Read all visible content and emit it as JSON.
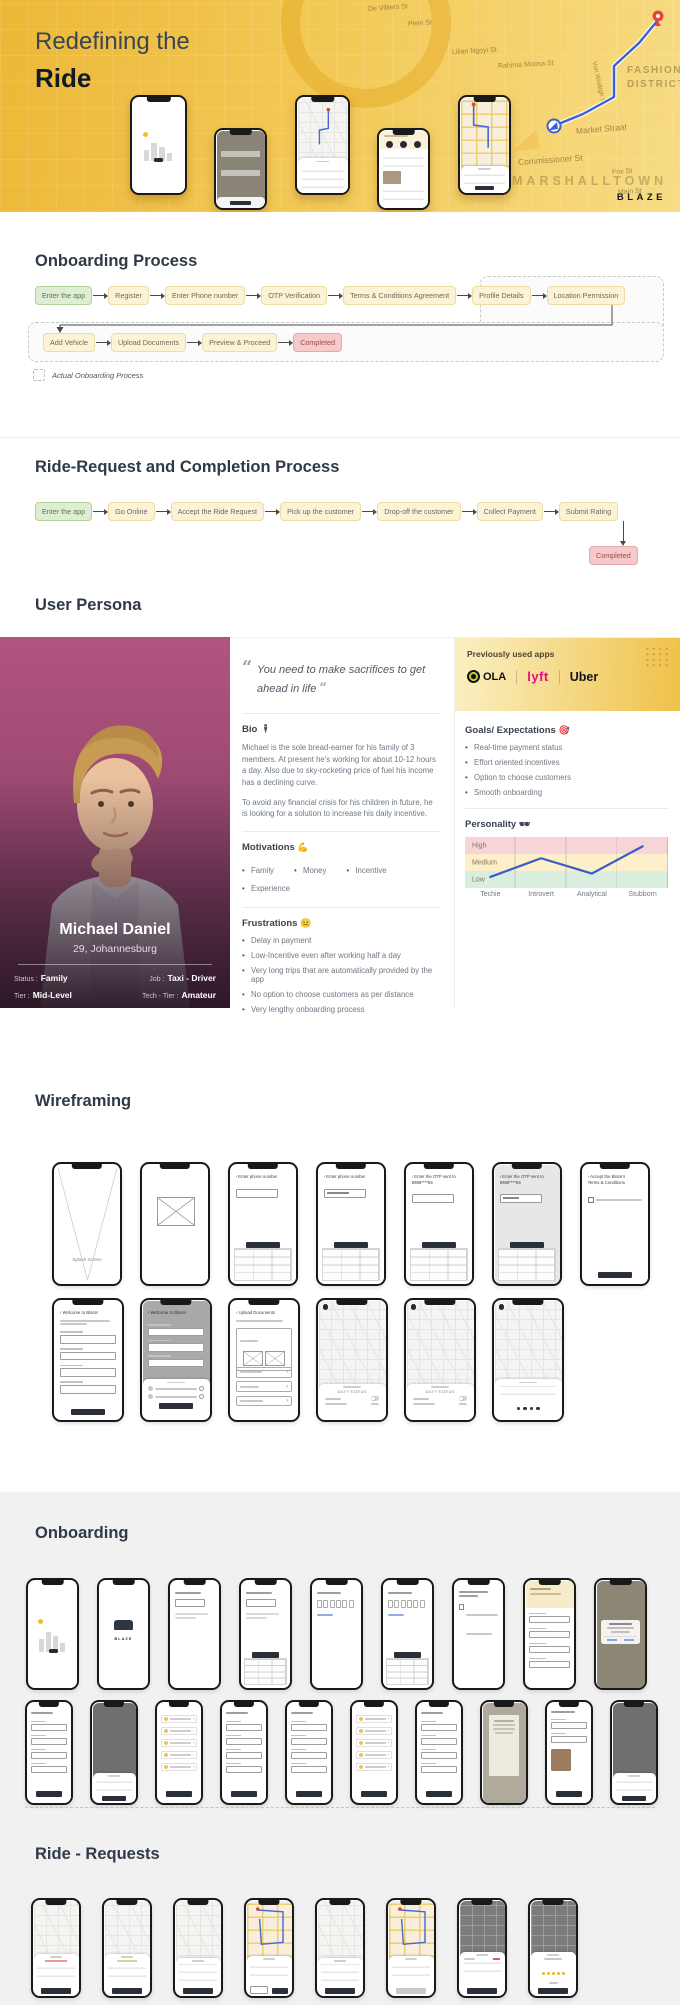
{
  "hero": {
    "title_line1": "Redefining the",
    "title_line2": "Ride",
    "brand": "BLAZE",
    "district": "FASHION DISTRICT",
    "area": "MARSHALLTOWN",
    "streets": [
      "De Villiers St",
      "Plein St",
      "Lilian Ngoyi St",
      "Rahima Moosa St",
      "Von Wielligh St",
      "Market Straat",
      "Commissioner St",
      "Fox St",
      "Fox St",
      "Main St"
    ],
    "route_color": "#3D5FD4",
    "pin_color": "#E2453A",
    "phones": [
      {
        "kind": "hp_splash"
      },
      {
        "kind": "hp_gray"
      },
      {
        "kind": "hp_map"
      },
      {
        "kind": "hp_list"
      },
      {
        "kind": "hp_map2"
      }
    ]
  },
  "onboarding_process": {
    "title": "Onboarding Process",
    "legend": "Actual Onboarding Process",
    "row1": [
      {
        "label": "Enter the app",
        "type": "green"
      },
      {
        "label": "Register",
        "type": "yellow"
      },
      {
        "label": "Enter Phone number",
        "type": "yellow"
      },
      {
        "label": "OTP Verification",
        "type": "yellow"
      },
      {
        "label": "Terms & Conditions Agreement",
        "type": "yellow"
      },
      {
        "label": "Profile Details",
        "type": "yellow"
      },
      {
        "label": "Location Permission",
        "type": "yellow"
      }
    ],
    "row2": [
      {
        "label": "Add Vehicle",
        "type": "yellow"
      },
      {
        "label": "Upload Documents",
        "type": "yellow"
      },
      {
        "label": "Preview & Proceed",
        "type": "yellow"
      },
      {
        "label": "Completed",
        "type": "red"
      }
    ]
  },
  "ride_process": {
    "title": "Ride-Request and Completion Process",
    "row": [
      {
        "label": "Enter the app",
        "type": "green"
      },
      {
        "label": "Go Online",
        "type": "yellow"
      },
      {
        "label": "Accept the Ride Request",
        "type": "yellow"
      },
      {
        "label": "Pick up the customer",
        "type": "yellow"
      },
      {
        "label": "Drop-off the customer",
        "type": "yellow"
      },
      {
        "label": "Collect Payment",
        "type": "yellow"
      },
      {
        "label": "Submit Rating",
        "type": "yellow"
      }
    ],
    "final": {
      "label": "Completed",
      "type": "red"
    }
  },
  "persona": {
    "title": "User Persona",
    "quote": "You need to make sacrifices to get ahead in life",
    "name": "Michael Daniel",
    "age_city": "29, Johannesburg",
    "attributes": [
      {
        "label": "Status :",
        "value": "Family"
      },
      {
        "label": "Job :",
        "value": "Taxi - Driver"
      },
      {
        "label": "Tier :",
        "value": "Mid-Level"
      },
      {
        "label": "Tech - Tier :",
        "value": "Amateur"
      }
    ],
    "bio": {
      "heading": "Bio",
      "emoji": "🕴",
      "paragraphs": [
        "Michael is the sole bread-earner for his family of 3 members. At present he's working for about 10-12 hours a day. Also due to sky-rocketing price of fuel his income has a declining curve.",
        "To avoid any financial crisis for his children in future, he is looking for a solution to increase his daily incentive."
      ]
    },
    "motivations": {
      "heading": "Motivations",
      "emoji": "💪",
      "items": [
        "Family",
        "Money",
        "Incentive",
        "Experience"
      ]
    },
    "frustrations": {
      "heading": "Frustrations",
      "emoji": "😐",
      "items": [
        "Delay in payment",
        "Low-Incentive even after working half a day",
        "Very long trips that are automatically provided by the app",
        "No option to choose customers as per distance",
        "Very lengthy onboarding process"
      ]
    },
    "apps": {
      "heading": "Previously used apps",
      "logos": [
        {
          "name": "OLA"
        },
        {
          "name": "lyft"
        },
        {
          "name": "Uber"
        }
      ]
    },
    "goals": {
      "heading": "Goals/ Expectations",
      "emoji": "🎯",
      "items": [
        "Real-time payment status",
        "Effort oriented incentives",
        "Option to choose customers",
        "Smooth onboarding"
      ]
    },
    "personality": {
      "heading": "Personality",
      "emoji": "🕶",
      "chart_data": {
        "type": "line",
        "categories": [
          "Techie",
          "Introvert",
          "Analytical",
          "Stubborn"
        ],
        "bands": [
          "High",
          "Medium",
          "Low"
        ],
        "values": [
          1.15,
          2.25,
          1.35,
          2.95
        ],
        "values_band": [
          "Low",
          "Medium",
          "Low",
          "High"
        ],
        "line_color": "#3A5BC7",
        "band_colors": {
          "High": "#F7D4D8",
          "Medium": "#FCEFC9",
          "Low": "#D9EEDF"
        }
      }
    }
  },
  "wireframing": {
    "title": "Wireframing",
    "row1": [
      {
        "kind": "wf_splash",
        "texts": [
          "Splash Screen"
        ]
      },
      {
        "kind": "wf_image",
        "texts": []
      },
      {
        "kind": "wf_input",
        "texts": [
          "Enter phone number"
        ]
      },
      {
        "kind": "wf_input_f",
        "texts": [
          "Enter phone number"
        ]
      },
      {
        "kind": "wf_otp",
        "texts": [
          "Enter the OTP sent to",
          "9988****55"
        ]
      },
      {
        "kind": "wf_otp_f",
        "texts": [
          "Enter the OTP sent to",
          "9988****55"
        ]
      },
      {
        "kind": "wf_terms",
        "texts": [
          "Accept the Blaze's",
          "Terms & Conditions"
        ]
      }
    ],
    "row2": [
      {
        "kind": "wf_form",
        "texts": [
          "Welcome to Blaze!"
        ]
      },
      {
        "kind": "wf_form_sheet",
        "texts": [
          "Welcome to Blaze!"
        ]
      },
      {
        "kind": "wf_upload",
        "texts": [
          "Upload Documents"
        ]
      },
      {
        "kind": "wf_map_duty",
        "texts": [
          "DUTY STATUS"
        ]
      },
      {
        "kind": "wf_map_duty",
        "texts": [
          "DUTY STATUS"
        ]
      },
      {
        "kind": "wf_map_otp",
        "texts": []
      }
    ]
  },
  "onboarding_screens": {
    "title": "Onboarding",
    "row1": [
      {
        "kind": "ob_splash"
      },
      {
        "kind": "ob_logo",
        "texts": [
          "BLAZE"
        ]
      },
      {
        "kind": "ob_input"
      },
      {
        "kind": "ob_input_pad"
      },
      {
        "kind": "ob_otp"
      },
      {
        "kind": "ob_otp_pad"
      },
      {
        "kind": "ob_terms"
      },
      {
        "kind": "ob_form_yellow"
      },
      {
        "kind": "ob_dark_dialog"
      }
    ],
    "row2": [
      {
        "kind": "ob_form"
      },
      {
        "kind": "ob_overlay"
      },
      {
        "kind": "ob_list"
      },
      {
        "kind": "ob_form"
      },
      {
        "kind": "ob_form"
      },
      {
        "kind": "ob_list"
      },
      {
        "kind": "ob_form"
      },
      {
        "kind": "ob_doc"
      },
      {
        "kind": "ob_photo"
      },
      {
        "kind": "ob_overlay"
      }
    ]
  },
  "ride_requests": {
    "title": "Ride - Requests",
    "row": [
      {
        "kind": "rr_light_red"
      },
      {
        "kind": "rr_light_stars"
      },
      {
        "kind": "rr_light"
      },
      {
        "kind": "rr_color_two"
      },
      {
        "kind": "rr_light"
      },
      {
        "kind": "rr_color_gray"
      },
      {
        "kind": "rr_dark_price"
      },
      {
        "kind": "rr_dark_stars"
      }
    ]
  }
}
